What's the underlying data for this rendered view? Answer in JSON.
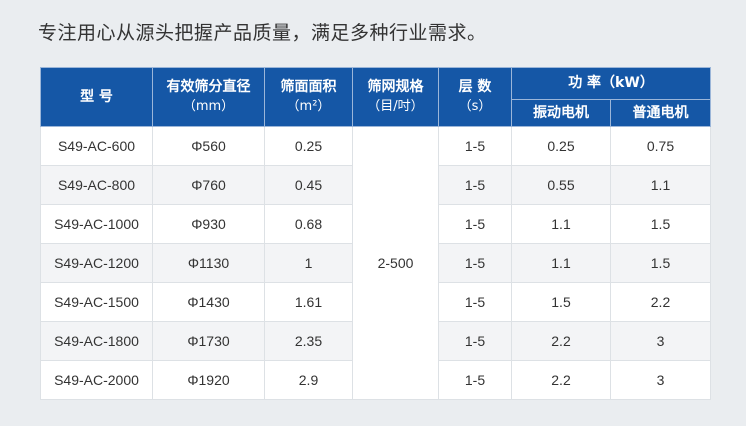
{
  "title": "专注用心从源头把握产品质量，满足多种行业需求。",
  "header": {
    "model": "型 号",
    "diameter": "有效筛分直径",
    "diameter_unit": "（mm）",
    "area": "筛面面积",
    "area_unit": "（m²）",
    "mesh": "筛网规格",
    "mesh_unit": "（目/吋）",
    "layers": "层 数",
    "layers_unit": "（s）",
    "power": "功 率（kW）",
    "vib_motor": "振动电机",
    "std_motor": "普通电机"
  },
  "mesh_value": "2-500",
  "rows": [
    {
      "model": "S49-AC-600",
      "diameter": "Φ560",
      "area": "0.25",
      "layers": "1-5",
      "vib": "0.25",
      "std": "0.75"
    },
    {
      "model": "S49-AC-800",
      "diameter": "Φ760",
      "area": "0.45",
      "layers": "1-5",
      "vib": "0.55",
      "std": "1.1"
    },
    {
      "model": "S49-AC-1000",
      "diameter": "Φ930",
      "area": "0.68",
      "layers": "1-5",
      "vib": "1.1",
      "std": "1.5"
    },
    {
      "model": "S49-AC-1200",
      "diameter": "Φ1130",
      "area": "1",
      "layers": "1-5",
      "vib": "1.1",
      "std": "1.5"
    },
    {
      "model": "S49-AC-1500",
      "diameter": "Φ1430",
      "area": "1.61",
      "layers": "1-5",
      "vib": "1.5",
      "std": "2.2"
    },
    {
      "model": "S49-AC-1800",
      "diameter": "Φ1730",
      "area": "2.35",
      "layers": "1-5",
      "vib": "2.2",
      "std": "3"
    },
    {
      "model": "S49-AC-2000",
      "diameter": "Φ1920",
      "area": "2.9",
      "layers": "1-5",
      "vib": "2.2",
      "std": "3"
    }
  ]
}
